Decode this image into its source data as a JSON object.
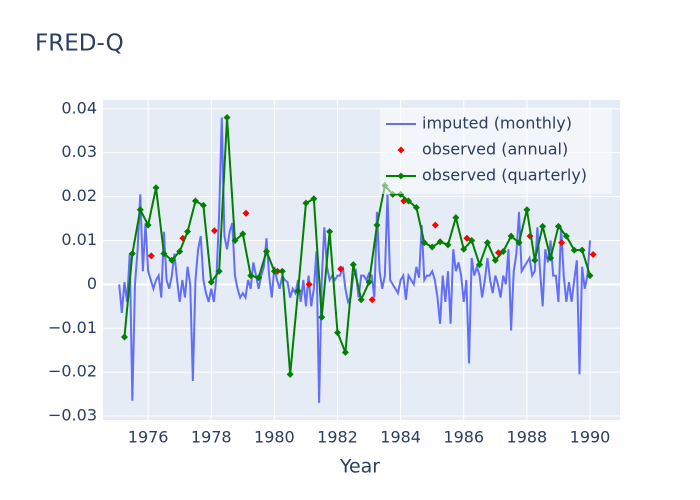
{
  "chart_data": {
    "type": "line",
    "title": "FRED-Q",
    "x_label": "Year",
    "xlim": [
      1974.57,
      1990.95
    ],
    "xticks": [
      1976,
      1978,
      1980,
      1982,
      1984,
      1986,
      1988,
      1990
    ],
    "ylim": [
      -0.0309,
      0.042
    ],
    "yticks": [
      {
        "value": -0.03,
        "label": "−0.03"
      },
      {
        "value": -0.02,
        "label": "−0.02"
      },
      {
        "value": -0.01,
        "label": "−0.01"
      },
      0,
      0.01,
      0.02,
      0.03,
      0.04
    ],
    "grid": true,
    "legend_position": "top-right",
    "series": [
      {
        "name": "imputed (monthly)",
        "color": "#636efa",
        "mode": "lines",
        "x": [
          1975.083,
          1975.167,
          1975.25,
          1975.333,
          1975.417,
          1975.5,
          1975.583,
          1975.667,
          1975.75,
          1975.833,
          1975.917,
          1976.0,
          1976.083,
          1976.167,
          1976.25,
          1976.333,
          1976.417,
          1976.5,
          1976.583,
          1976.667,
          1976.75,
          1976.833,
          1976.917,
          1977.0,
          1977.083,
          1977.167,
          1977.25,
          1977.333,
          1977.417,
          1977.5,
          1977.583,
          1977.667,
          1977.75,
          1977.833,
          1977.917,
          1978.0,
          1978.083,
          1978.167,
          1978.25,
          1978.333,
          1978.417,
          1978.5,
          1978.583,
          1978.667,
          1978.75,
          1978.833,
          1978.917,
          1979.0,
          1979.083,
          1979.167,
          1979.25,
          1979.333,
          1979.417,
          1979.5,
          1979.583,
          1979.667,
          1979.75,
          1979.833,
          1979.917,
          1980.0,
          1980.083,
          1980.167,
          1980.25,
          1980.333,
          1980.417,
          1980.5,
          1980.583,
          1980.667,
          1980.75,
          1980.833,
          1980.917,
          1981.0,
          1981.083,
          1981.167,
          1981.25,
          1981.333,
          1981.417,
          1981.5,
          1981.583,
          1981.667,
          1981.75,
          1981.833,
          1981.917,
          1982.0,
          1982.083,
          1982.167,
          1982.25,
          1982.333,
          1982.417,
          1982.5,
          1982.583,
          1982.667,
          1982.75,
          1982.833,
          1982.917,
          1983.0,
          1983.083,
          1983.167,
          1983.25,
          1983.333,
          1983.417,
          1983.5,
          1983.583,
          1983.667,
          1983.75,
          1983.833,
          1983.917,
          1984.0,
          1984.083,
          1984.167,
          1984.25,
          1984.333,
          1984.417,
          1984.5,
          1984.583,
          1984.667,
          1984.75,
          1984.833,
          1984.917,
          1985.0,
          1985.083,
          1985.167,
          1985.25,
          1985.333,
          1985.417,
          1985.5,
          1985.583,
          1985.667,
          1985.75,
          1985.833,
          1985.917,
          1986.0,
          1986.083,
          1986.167,
          1986.25,
          1986.333,
          1986.417,
          1986.5,
          1986.583,
          1986.667,
          1986.75,
          1986.833,
          1986.917,
          1987.0,
          1987.083,
          1987.167,
          1987.25,
          1987.333,
          1987.417,
          1987.5,
          1987.583,
          1987.667,
          1987.75,
          1987.833,
          1987.917,
          1988.0,
          1988.083,
          1988.167,
          1988.25,
          1988.333,
          1988.417,
          1988.5,
          1988.583,
          1988.667,
          1988.75,
          1988.833,
          1988.917,
          1989.0,
          1989.083,
          1989.167,
          1989.25,
          1989.333,
          1989.417,
          1989.5,
          1989.583,
          1989.667,
          1989.75,
          1989.833,
          1989.917,
          1990.0
        ],
        "values": [
          0,
          -0.0065,
          0.0005,
          -0.004,
          0.007,
          -0.0265,
          0,
          0.008,
          0.0205,
          0.003,
          0.014,
          0.003,
          0.001,
          -0.001,
          0.001,
          0.002,
          -0.003,
          0.012,
          0.001,
          -0.001,
          0.002,
          0.007,
          0.001,
          -0.004,
          0.001,
          -0.003,
          0.004,
          0,
          -0.022,
          0.001,
          0.008,
          0.011,
          0.001,
          -0.002,
          -0.004,
          -0.001,
          -0.004,
          0.002,
          0.016,
          0.038,
          0.011,
          0.008,
          0.012,
          0.014,
          0.002,
          -0.001,
          -0.003,
          -0.002,
          -0.003,
          0.001,
          -0.001,
          0.005,
          0.002,
          -0.001,
          0.002,
          0.004,
          0.0105,
          0.002,
          -0.003,
          0.004,
          0.001,
          -0.001,
          0.002,
          0.001,
          0.0005,
          -0.003,
          -0.001,
          -0.002,
          0.001,
          -0.004,
          0.001,
          -0.005,
          0.002,
          -0.005,
          -0.001,
          0.0075,
          -0.027,
          0.001,
          0.013,
          0.004,
          0.001,
          0.002,
          0.001,
          0.002,
          0.002,
          0.004,
          -0.001,
          -0.004,
          -0.003,
          0.002,
          0.003,
          -0.003,
          0.002,
          0.002,
          0.001,
          0.0025,
          0.002,
          -0.003,
          0.0165,
          0.003,
          -0.001,
          0.002,
          0.0205,
          0.001,
          0,
          -0.001,
          -0.002,
          0.001,
          0.002,
          -0.0035,
          0.002,
          0.001,
          0,
          0.004,
          0.0015,
          0.0135,
          0.001,
          0.002,
          0.002,
          0.003,
          0.001,
          -0.003,
          -0.009,
          0.002,
          -0.004,
          0.003,
          -0.009,
          0.008,
          0.003,
          0.005,
          0.002,
          -0.004,
          0.001,
          -0.018,
          0.006,
          0.002,
          0.004,
          0.002,
          -0.003,
          0.001,
          0.006,
          0.001,
          -0.002,
          0.002,
          0,
          -0.003,
          0.002,
          0,
          0.008,
          -0.0105,
          0.003,
          0.007,
          0.0165,
          0.003,
          0.004,
          0.005,
          0.006,
          0.002,
          0.003,
          0.013,
          0.003,
          -0.005,
          0.008,
          0.005,
          0.01,
          0.002,
          0.002,
          -0.004,
          0.013,
          0.002,
          -0.004,
          0.0005,
          -0.004,
          0.001,
          0.0055,
          -0.0205,
          0.004,
          -0.001,
          0.002,
          0.01
        ]
      },
      {
        "name": "observed (annual)",
        "color": "#ff0000",
        "mode": "markers",
        "x": [
          1976.1,
          1977.1,
          1978.1,
          1979.1,
          1980.1,
          1981.1,
          1982.1,
          1983.1,
          1984.1,
          1985.1,
          1986.1,
          1987.1,
          1988.1,
          1989.1,
          1990.1
        ],
        "values": [
          0.0065,
          0.0105,
          0.0122,
          0.0162,
          0.003,
          0,
          0.0035,
          -0.0035,
          0.019,
          0.0135,
          0.0105,
          0.0072,
          0.011,
          0.0095,
          0.0068
        ]
      },
      {
        "name": "observed (quarterly)",
        "color": "#008000",
        "mode": "lines+markers",
        "x": [
          1975.25,
          1975.5,
          1975.75,
          1976.0,
          1976.25,
          1976.5,
          1976.75,
          1977.0,
          1977.25,
          1977.5,
          1977.75,
          1978.0,
          1978.25,
          1978.5,
          1978.75,
          1979.0,
          1979.25,
          1979.5,
          1979.75,
          1980.0,
          1980.25,
          1980.5,
          1980.75,
          1981.0,
          1981.25,
          1981.5,
          1981.75,
          1982.0,
          1982.25,
          1982.5,
          1982.75,
          1983.0,
          1983.25,
          1983.5,
          1983.75,
          1984.0,
          1984.25,
          1984.5,
          1984.75,
          1985.0,
          1985.25,
          1985.5,
          1985.75,
          1986.0,
          1986.25,
          1986.5,
          1986.75,
          1987.0,
          1987.25,
          1987.5,
          1987.75,
          1988.0,
          1988.25,
          1988.5,
          1988.75,
          1989.0,
          1989.25,
          1989.5,
          1989.75,
          1990.0
        ],
        "values": [
          -0.012,
          0.007,
          0.017,
          0.0135,
          0.022,
          0.007,
          0.0055,
          0.0075,
          0.012,
          0.019,
          0.018,
          0.0005,
          0.003,
          0.038,
          0.01,
          0.0115,
          0.002,
          0.0015,
          0.0075,
          0.003,
          0.003,
          -0.0205,
          -0.0015,
          0.0185,
          0.0195,
          -0.0075,
          0.012,
          -0.011,
          -0.0155,
          0.0045,
          -0.0035,
          0.0005,
          0.0135,
          0.0225,
          0.0205,
          0.0205,
          0.019,
          0.0175,
          0.0095,
          0.0085,
          0.0097,
          0.009,
          0.0152,
          0.008,
          0.01,
          0.0045,
          0.0095,
          0.0055,
          0.0075,
          0.011,
          0.0095,
          0.017,
          0.0055,
          0.0132,
          0.006,
          0.0132,
          0.011,
          0.0078,
          0.0078,
          0.002
        ]
      }
    ]
  }
}
